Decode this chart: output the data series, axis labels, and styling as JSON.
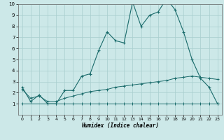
{
  "xlabel": "Humidex (Indice chaleur)",
  "bg_color": "#cce8e8",
  "line_color": "#1a6b6b",
  "grid_color": "#a8cece",
  "xlim": [
    -0.5,
    23.5
  ],
  "ylim": [
    0,
    10
  ],
  "xticks": [
    0,
    1,
    2,
    3,
    4,
    5,
    6,
    7,
    8,
    9,
    10,
    11,
    12,
    13,
    14,
    15,
    16,
    17,
    18,
    19,
    20,
    21,
    22,
    23
  ],
  "yticks": [
    1,
    2,
    3,
    4,
    5,
    6,
    7,
    8,
    9,
    10
  ],
  "main_x": [
    0,
    1,
    2,
    3,
    4,
    5,
    6,
    7,
    8,
    9,
    10,
    11,
    12,
    13,
    14,
    15,
    16,
    17,
    18,
    19,
    20,
    21,
    22,
    23
  ],
  "main_y": [
    2.5,
    1.2,
    1.8,
    1.0,
    1.0,
    2.2,
    2.2,
    3.5,
    3.7,
    5.8,
    7.5,
    6.7,
    6.5,
    10.2,
    8.0,
    9.0,
    9.3,
    10.5,
    9.5,
    7.5,
    5.0,
    3.3,
    2.5,
    1.0
  ],
  "line1_x": [
    0,
    3,
    4,
    5,
    6,
    7,
    8,
    9,
    10,
    11,
    12,
    13,
    14,
    15,
    16,
    17,
    18,
    19,
    20,
    21,
    22,
    23
  ],
  "line1_y": [
    1.0,
    1.0,
    1.0,
    1.0,
    1.0,
    1.0,
    1.0,
    1.0,
    1.0,
    1.0,
    1.0,
    1.0,
    1.0,
    1.0,
    1.0,
    1.0,
    1.0,
    1.0,
    1.0,
    1.0,
    1.0,
    1.0
  ],
  "line2_x": [
    0,
    1,
    2,
    3,
    4,
    5,
    6,
    7,
    8,
    9,
    10,
    11,
    12,
    13,
    14,
    15,
    16,
    17,
    18,
    19,
    20,
    21,
    22,
    23
  ],
  "line2_y": [
    2.3,
    1.5,
    1.7,
    1.2,
    1.2,
    1.5,
    1.7,
    1.9,
    2.1,
    2.2,
    2.3,
    2.5,
    2.6,
    2.7,
    2.8,
    2.9,
    3.0,
    3.1,
    3.3,
    3.4,
    3.5,
    3.4,
    3.3,
    3.2
  ]
}
